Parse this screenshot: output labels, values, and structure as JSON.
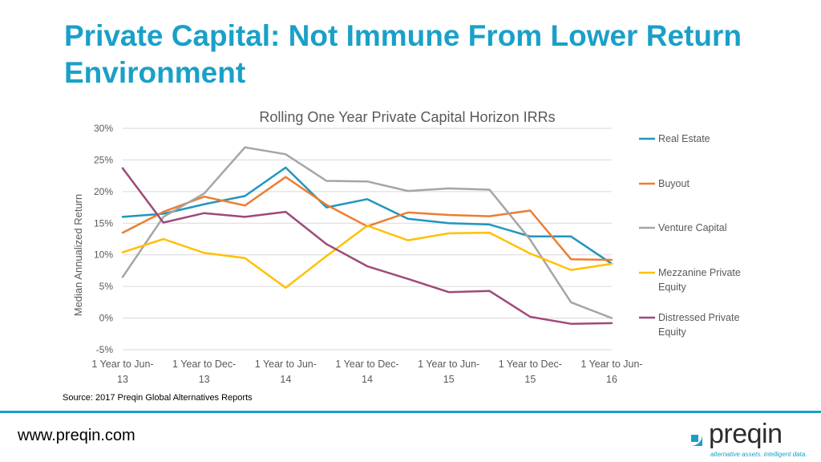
{
  "title": "Private Capital: Not Immune From Lower Return Environment",
  "source": "Source: 2017 Preqin Global Alternatives Reports",
  "website": "www.preqin.com",
  "logo": {
    "name": "preqin",
    "tagline": "alternative assets. intelligent data."
  },
  "colors": {
    "title": "#1aa0c8",
    "real_estate": "#2195bf",
    "buyout": "#ed7d31",
    "venture_capital": "#a5a5a5",
    "mezzanine": "#ffc000",
    "distressed": "#9e4a7a"
  },
  "chart_data": {
    "type": "line",
    "title": "Rolling One Year Private Capital Horizon IRRs",
    "xlabel": "",
    "ylabel": "Median Annualized Return",
    "ylim": [
      -5,
      30
    ],
    "yticks": [
      -5,
      0,
      5,
      10,
      15,
      20,
      25,
      30
    ],
    "ytick_labels": [
      "-5%",
      "0%",
      "5%",
      "10%",
      "15%",
      "20%",
      "25%",
      "30%"
    ],
    "x_count": 13,
    "x_tick_indices": [
      0,
      2,
      4,
      6,
      8,
      10,
      12
    ],
    "x_tick_labels": [
      [
        "1 Year to Jun-",
        "13"
      ],
      [
        "1 Year to Dec-",
        "13"
      ],
      [
        "1 Year to Jun-",
        "14"
      ],
      [
        "1 Year to Dec-",
        "14"
      ],
      [
        "1 Year to Jun-",
        "15"
      ],
      [
        "1 Year to Dec-",
        "15"
      ],
      [
        "1 Year to Jun-",
        "16"
      ]
    ],
    "grid": true,
    "legend": "right",
    "series": [
      {
        "name": "Real Estate",
        "lines": [
          "Real Estate"
        ],
        "color_key": "real_estate",
        "values": [
          16.0,
          16.5,
          18.0,
          19.3,
          23.8,
          17.5,
          18.8,
          15.7,
          15.0,
          14.8,
          12.9,
          12.9,
          8.6
        ]
      },
      {
        "name": "Buyout",
        "lines": [
          "Buyout"
        ],
        "color_key": "buyout",
        "values": [
          13.5,
          16.8,
          19.2,
          17.8,
          22.3,
          17.9,
          14.5,
          16.7,
          16.3,
          16.1,
          17.0,
          9.3,
          9.2
        ]
      },
      {
        "name": "Venture Capital",
        "lines": [
          "Venture Capital"
        ],
        "color_key": "venture_capital",
        "values": [
          6.5,
          16.0,
          19.7,
          27.0,
          25.9,
          21.7,
          21.6,
          20.1,
          20.5,
          20.3,
          12.4,
          2.5,
          0.0
        ]
      },
      {
        "name": "Mezzanine Private Equity",
        "lines": [
          "Mezzanine Private",
          "Equity"
        ],
        "color_key": "mezzanine",
        "values": [
          10.4,
          12.5,
          10.3,
          9.5,
          4.8,
          9.8,
          14.6,
          12.3,
          13.4,
          13.5,
          10.2,
          7.6,
          8.6
        ]
      },
      {
        "name": "Distressed Private Equity",
        "lines": [
          "Distressed Private",
          "Equity"
        ],
        "color_key": "distressed",
        "values": [
          23.7,
          15.1,
          16.6,
          16.0,
          16.8,
          11.7,
          8.2,
          6.2,
          4.1,
          4.3,
          0.2,
          -0.9,
          -0.8
        ]
      }
    ]
  }
}
